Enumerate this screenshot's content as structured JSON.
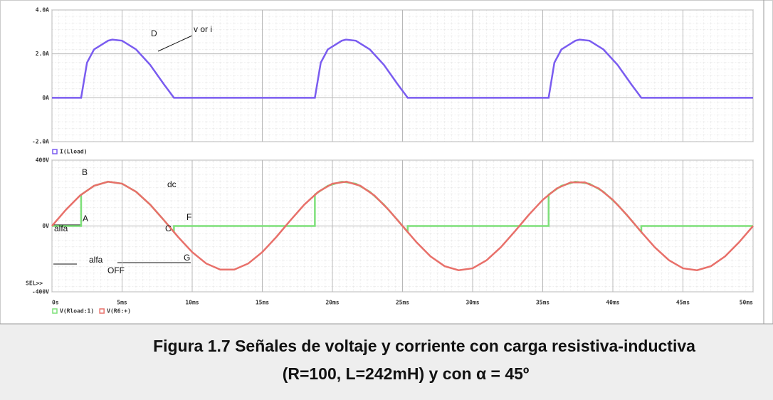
{
  "chart_data": [
    {
      "type": "line",
      "annotations": [
        "D",
        "v or i"
      ],
      "series": [
        {
          "name": "I(Lload)",
          "color": "#7a5cf0",
          "x": [
            0,
            2.08,
            2.5,
            3,
            4,
            4.3,
            5,
            6,
            7,
            8,
            8.7,
            18.75,
            19.17,
            19.67,
            20.67,
            20.97,
            21.67,
            22.67,
            23.67,
            24.67,
            25.37,
            35.42,
            35.83,
            36.33,
            37.33,
            37.63,
            38.33,
            39.33,
            40.33,
            41.33,
            42.03,
            50
          ],
          "values": [
            0,
            0,
            1.6,
            2.2,
            2.6,
            2.65,
            2.6,
            2.2,
            1.5,
            0.6,
            0,
            0,
            1.6,
            2.2,
            2.6,
            2.65,
            2.6,
            2.2,
            1.5,
            0.6,
            0,
            0,
            1.6,
            2.2,
            2.6,
            2.65,
            2.6,
            2.2,
            1.5,
            0.6,
            0,
            0
          ]
        }
      ],
      "xlim": [
        0,
        50
      ],
      "xticks": [
        0,
        5,
        10,
        15,
        20,
        25,
        30,
        35,
        40,
        45,
        50
      ],
      "ylim": [
        -2,
        4
      ],
      "yticks": [
        {
          "value": -2,
          "label": "-2.0A"
        },
        {
          "value": 0,
          "label": "0A"
        },
        {
          "value": 2,
          "label": "2.0A"
        },
        {
          "value": 4,
          "label": "4.0A"
        }
      ],
      "grid": true
    },
    {
      "type": "line",
      "annotations": [
        "B",
        "dc",
        "A",
        "alfa",
        "C",
        "F",
        "alfa",
        "OFF",
        "G"
      ],
      "cursor_label": "SEL>>",
      "series": [
        {
          "name": "V(Rload:1)",
          "color": "#7ee07a",
          "x": [
            0,
            2.08,
            2.08,
            3,
            4,
            5,
            6,
            7,
            8,
            8.7,
            8.7,
            18.75,
            18.75,
            19.67,
            20.67,
            21.67,
            22.67,
            23.67,
            24.67,
            25.37,
            25.37,
            35.42,
            35.42,
            36.33,
            37.33,
            38.33,
            39.33,
            40.33,
            41.33,
            42.03,
            42.03,
            50
          ],
          "values": [
            0,
            0,
            190,
            244,
            269,
            257,
            208,
            130,
            34,
            -37,
            0,
            0,
            191,
            244,
            269,
            257,
            208,
            130,
            34,
            -37,
            0,
            0,
            191,
            244,
            269,
            257,
            208,
            130,
            34,
            -37,
            0,
            0
          ]
        },
        {
          "name": "V(R6:+)",
          "color": "#e8706a",
          "x": [
            0,
            1,
            2,
            3,
            4,
            5,
            6,
            7,
            8,
            9,
            10,
            11,
            12,
            13,
            14,
            15,
            16,
            17,
            18,
            19,
            20,
            21,
            22,
            23,
            24,
            25,
            26,
            27,
            28,
            29,
            30,
            31,
            32,
            33,
            34,
            35,
            36,
            37,
            38,
            39,
            40,
            41,
            42,
            43,
            44,
            45,
            46,
            47,
            48,
            49,
            50
          ],
          "values": [
            0,
            99,
            185,
            244,
            269,
            257,
            208,
            130,
            34,
            -67,
            -159,
            -228,
            -265,
            -265,
            -228,
            -159,
            -67,
            34,
            130,
            208,
            257,
            269,
            244,
            185,
            99,
            0,
            -99,
            -185,
            -244,
            -269,
            -257,
            -208,
            -130,
            -34,
            67,
            159,
            228,
            265,
            265,
            228,
            159,
            67,
            -34,
            -130,
            -208,
            -257,
            -269,
            -244,
            -185,
            -99,
            0
          ]
        }
      ],
      "xlim": [
        0,
        50
      ],
      "xticks": [
        {
          "value": 0,
          "label": "0s"
        },
        {
          "value": 5,
          "label": "5ms"
        },
        {
          "value": 10,
          "label": "10ms"
        },
        {
          "value": 15,
          "label": "15ms"
        },
        {
          "value": 20,
          "label": "20ms"
        },
        {
          "value": 25,
          "label": "25ms"
        },
        {
          "value": 30,
          "label": "30ms"
        },
        {
          "value": 35,
          "label": "35ms"
        },
        {
          "value": 40,
          "label": "40ms"
        },
        {
          "value": 45,
          "label": "45ms"
        },
        {
          "value": 50,
          "label": "50ms"
        }
      ],
      "ylim": [
        -400,
        400
      ],
      "yticks": [
        {
          "value": -400,
          "label": "-400V"
        },
        {
          "value": 0,
          "label": "0V"
        },
        {
          "value": 400,
          "label": "400V"
        }
      ],
      "grid": true
    }
  ],
  "caption": [
    "Figura 1.7 Señales de voltaje y corriente con carga resistiva-inductiva",
    "(R=100, L=242mH) y con α = 45º"
  ]
}
